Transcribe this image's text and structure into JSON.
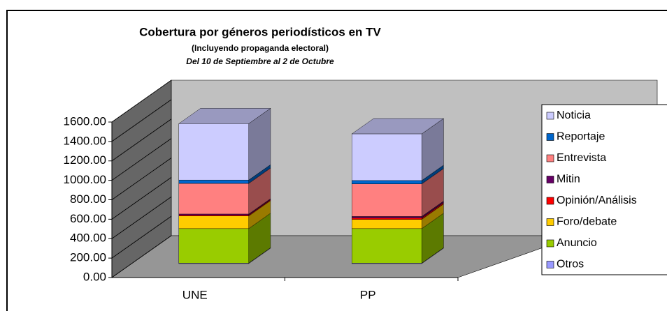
{
  "chart_data": {
    "type": "bar3d_stacked",
    "title": "Cobertura por géneros periodísticos en TV",
    "subtitle": "(Incluyendo propaganda electoral)",
    "period": "Del 10 de Septiembre al 2 de Octubre",
    "categories": [
      "UNE",
      "PP"
    ],
    "series": [
      {
        "name": "Otros",
        "color": "#9999ff",
        "values": [
          5,
          5
        ]
      },
      {
        "name": "Anuncio",
        "color": "#99cc00",
        "values": [
          355,
          355
        ]
      },
      {
        "name": "Foro/debate",
        "color": "#ffcc00",
        "values": [
          130,
          95
        ]
      },
      {
        "name": "Opinión/Análisis",
        "color": "#ff0000",
        "values": [
          10,
          15
        ]
      },
      {
        "name": "Mitin",
        "color": "#660066",
        "values": [
          10,
          15
        ]
      },
      {
        "name": "Entrevista",
        "color": "#ff8080",
        "values": [
          315,
          335
        ]
      },
      {
        "name": "Reportaje",
        "color": "#0066cc",
        "values": [
          35,
          35
        ]
      },
      {
        "name": "Noticia",
        "color": "#ccccff",
        "values": [
          580,
          480
        ]
      }
    ],
    "ylim": [
      0,
      1600
    ],
    "yticks": [
      {
        "value": 0,
        "label": "0.00"
      },
      {
        "value": 200,
        "label": "200.00"
      },
      {
        "value": 400,
        "label": "400.00"
      },
      {
        "value": 600,
        "label": "600.00"
      },
      {
        "value": 800,
        "label": "800.00"
      },
      {
        "value": 1000,
        "label": "1000.00"
      },
      {
        "value": 1200,
        "label": "1200.00"
      },
      {
        "value": 1400,
        "label": "1400.00"
      },
      {
        "value": 1600,
        "label": "1600.00"
      }
    ],
    "grid": true,
    "legend": "right"
  }
}
